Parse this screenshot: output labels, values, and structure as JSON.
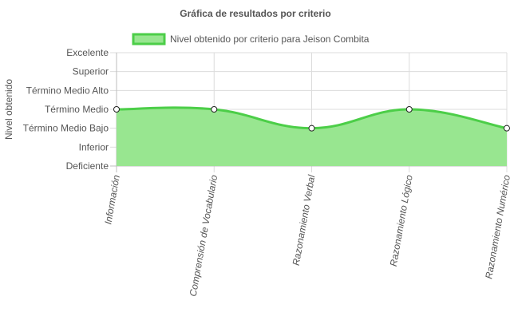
{
  "chart_data": {
    "type": "area",
    "title": "Gráfica de resultados por criterio",
    "ylabel": "Nivel obtenido",
    "xlabel": "",
    "categories": [
      "Información",
      "Comprensión de Vocabulario",
      "Razonamiento Verbal",
      "Razonamiento Lógico",
      "Razonamiento Numérico"
    ],
    "y_levels": [
      "Deficiente",
      "Inferior",
      "Término Medio Bajo",
      "Término Medio",
      "Término Medio Alto",
      "Superior",
      "Excelente"
    ],
    "series": [
      {
        "name": "Nivel obtenido por criterio para Jeison Combita",
        "values": [
          "Término Medio",
          "Término Medio",
          "Término Medio Bajo",
          "Término Medio",
          "Término Medio Bajo"
        ],
        "level_index": [
          3,
          3,
          2,
          3,
          2
        ],
        "fill_color": "#98e690",
        "line_color": "#4cce48"
      }
    ],
    "grid": true,
    "legend_position": "top"
  }
}
